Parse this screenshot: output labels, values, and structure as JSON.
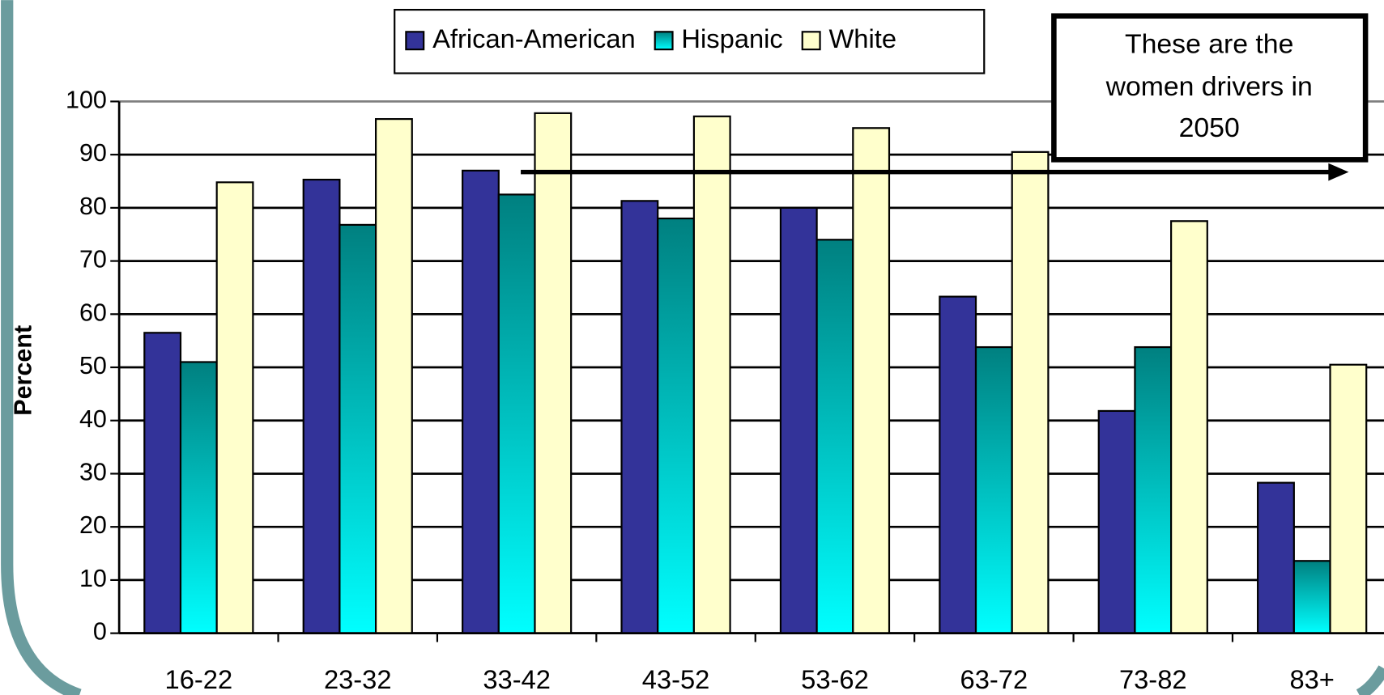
{
  "chart_data": {
    "type": "bar",
    "y_label": "Percent",
    "categories": [
      "16-22",
      "23-32",
      "33-42",
      "43-52",
      "53-62",
      "63-72",
      "73-82",
      "83+"
    ],
    "series": [
      {
        "name": "African-American",
        "color": "#333399",
        "values": [
          56.5,
          85.3,
          87,
          81.3,
          80,
          63.3,
          41.8,
          28.3
        ]
      },
      {
        "name": "Hispanic",
        "color": "#008080",
        "gradient_end": "#00ffff",
        "values": [
          51,
          76.8,
          82.5,
          78,
          74,
          53.8,
          53.8,
          13.6
        ]
      },
      {
        "name": "White",
        "color": "#ffffcc",
        "values": [
          84.8,
          96.7,
          97.8,
          97.2,
          95,
          90.5,
          77.5,
          50.5
        ]
      }
    ],
    "ylim": [
      0,
      100
    ],
    "yticks": [
      0,
      10,
      20,
      30,
      40,
      50,
      60,
      70,
      80,
      90,
      100
    ],
    "grid": true,
    "legend": "top",
    "annotation": {
      "lines": [
        "These are the",
        "women drivers in",
        "2050"
      ]
    }
  }
}
